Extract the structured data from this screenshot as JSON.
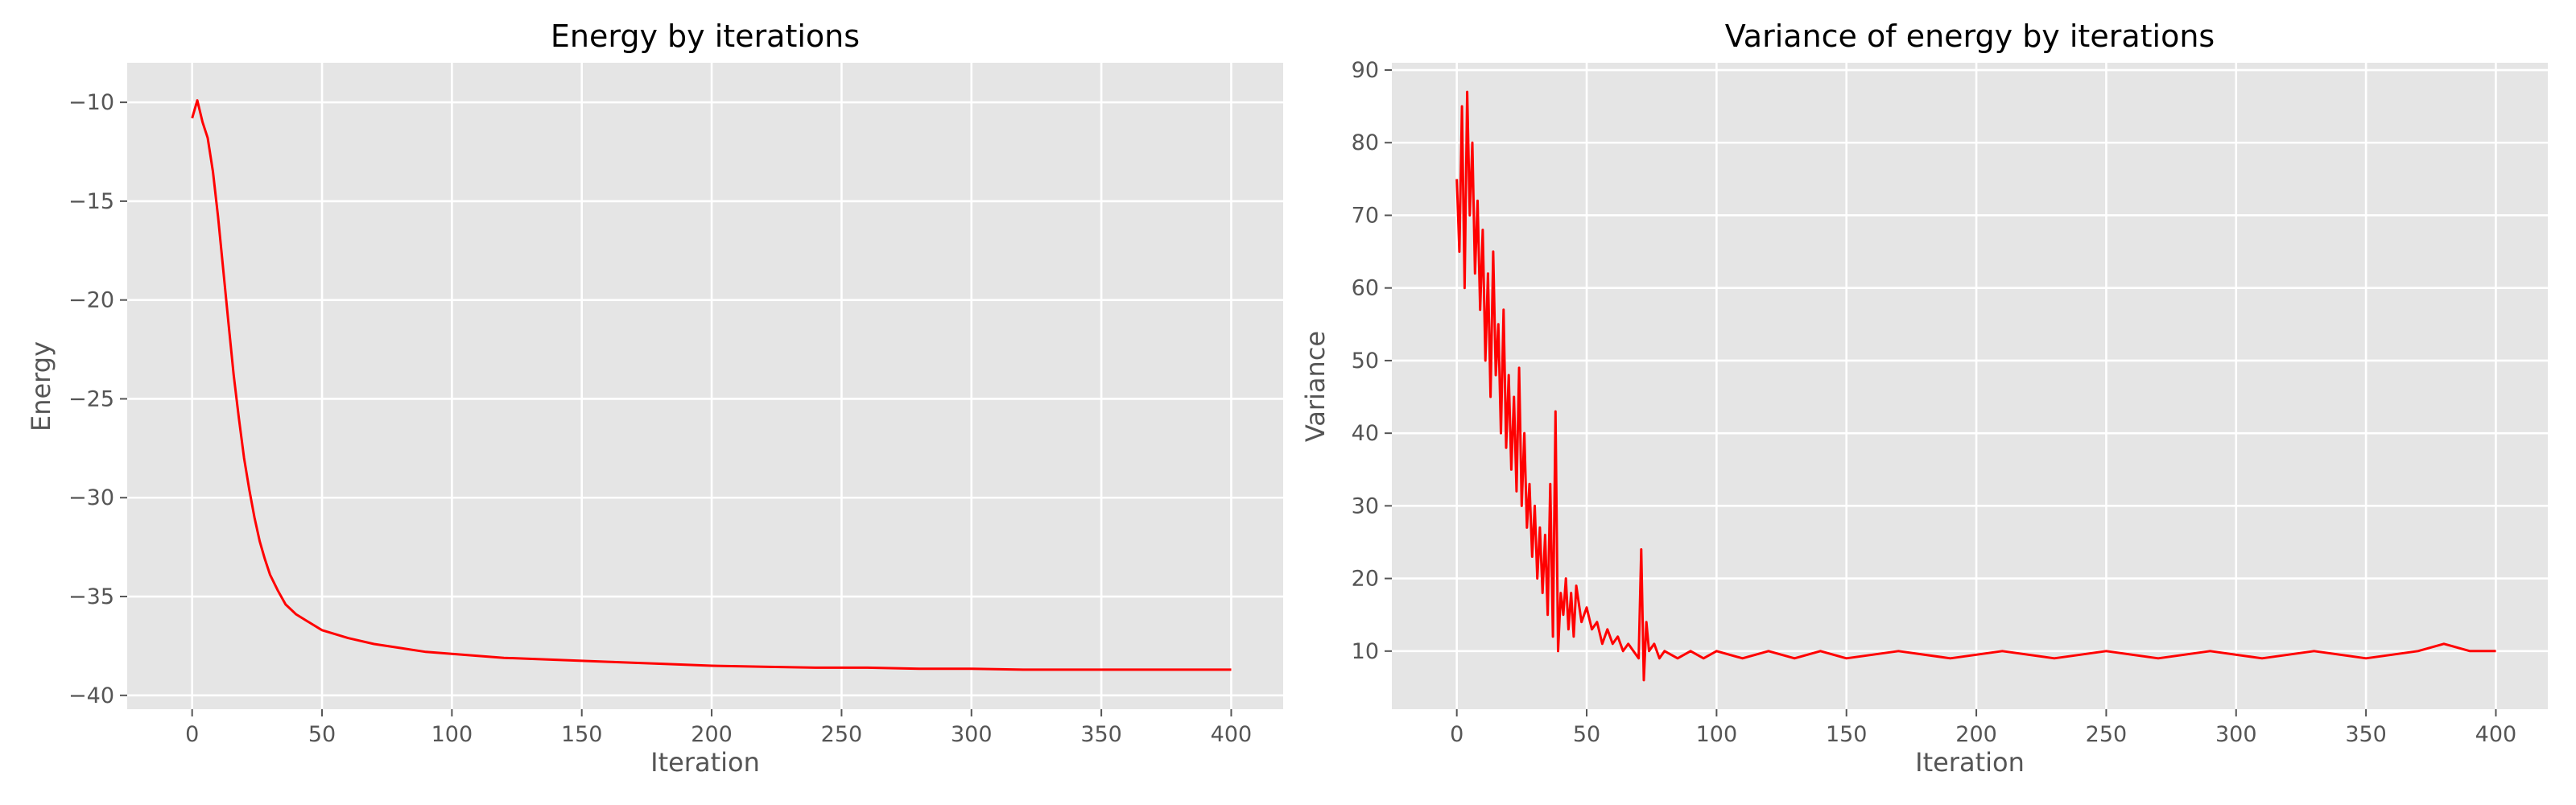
{
  "chart_data": [
    {
      "type": "line",
      "title": "Energy by iterations",
      "xlabel": "Iteration",
      "ylabel": "Energy",
      "xlim": [
        -25,
        420
      ],
      "ylim": [
        -40.7,
        -8.0
      ],
      "xticks": [
        0,
        50,
        100,
        150,
        200,
        250,
        300,
        350,
        400
      ],
      "yticks": [
        -40,
        -35,
        -30,
        -25,
        -20,
        -15,
        -10
      ],
      "ytick_labels": [
        "−40",
        "−35",
        "−30",
        "−25",
        "−20",
        "−15",
        "−10"
      ],
      "grid": true,
      "series": [
        {
          "color": "#ff0000",
          "x": [
            0,
            2,
            4,
            6,
            8,
            10,
            12,
            14,
            16,
            18,
            20,
            22,
            24,
            26,
            28,
            30,
            33,
            36,
            40,
            45,
            50,
            55,
            60,
            70,
            80,
            90,
            100,
            120,
            140,
            160,
            180,
            200,
            220,
            240,
            260,
            280,
            300,
            320,
            340,
            360,
            380,
            400
          ],
          "y": [
            -10.8,
            -9.9,
            -11.0,
            -11.8,
            -13.5,
            -15.8,
            -18.5,
            -21.2,
            -23.8,
            -26.0,
            -28.0,
            -29.6,
            -31.0,
            -32.2,
            -33.1,
            -33.9,
            -34.7,
            -35.4,
            -35.9,
            -36.3,
            -36.7,
            -36.9,
            -37.1,
            -37.4,
            -37.6,
            -37.8,
            -37.9,
            -38.1,
            -38.2,
            -38.3,
            -38.4,
            -38.5,
            -38.55,
            -38.6,
            -38.6,
            -38.65,
            -38.65,
            -38.7,
            -38.7,
            -38.7,
            -38.7,
            -38.7
          ]
        }
      ]
    },
    {
      "type": "line",
      "title": "Variance of energy by iterations",
      "xlabel": "Iteration",
      "ylabel": "Variance",
      "xlim": [
        -25,
        420
      ],
      "ylim": [
        2,
        91
      ],
      "xticks": [
        0,
        50,
        100,
        150,
        200,
        250,
        300,
        350,
        400
      ],
      "yticks": [
        10,
        20,
        30,
        40,
        50,
        60,
        70,
        80,
        90
      ],
      "ytick_labels": [
        "10",
        "20",
        "30",
        "40",
        "50",
        "60",
        "70",
        "80",
        "90"
      ],
      "grid": true,
      "series": [
        {
          "color": "#ff0000",
          "x": [
            0,
            1,
            2,
            3,
            4,
            5,
            6,
            7,
            8,
            9,
            10,
            11,
            12,
            13,
            14,
            15,
            16,
            17,
            18,
            19,
            20,
            21,
            22,
            23,
            24,
            25,
            26,
            27,
            28,
            29,
            30,
            31,
            32,
            33,
            34,
            35,
            36,
            37,
            38,
            39,
            40,
            41,
            42,
            43,
            44,
            45,
            46,
            48,
            50,
            52,
            54,
            56,
            58,
            60,
            62,
            64,
            66,
            68,
            70,
            71,
            72,
            73,
            74,
            76,
            78,
            80,
            85,
            90,
            95,
            100,
            110,
            120,
            130,
            140,
            150,
            170,
            190,
            210,
            230,
            250,
            270,
            290,
            310,
            330,
            350,
            370,
            380,
            390,
            400
          ],
          "y": [
            75,
            65,
            85,
            60,
            87,
            70,
            80,
            62,
            72,
            57,
            68,
            50,
            62,
            45,
            65,
            48,
            55,
            40,
            57,
            38,
            48,
            35,
            45,
            32,
            49,
            30,
            40,
            27,
            33,
            23,
            30,
            20,
            27,
            18,
            26,
            15,
            33,
            12,
            43,
            10,
            18,
            15,
            20,
            13,
            18,
            12,
            19,
            14,
            16,
            13,
            14,
            11,
            13,
            11,
            12,
            10,
            11,
            10,
            9,
            24,
            6,
            14,
            10,
            11,
            9,
            10,
            9,
            10,
            9,
            10,
            9,
            10,
            9,
            10,
            9,
            10,
            9,
            10,
            9,
            10,
            9,
            10,
            9,
            10,
            9,
            10,
            11,
            10,
            10
          ]
        }
      ]
    }
  ]
}
